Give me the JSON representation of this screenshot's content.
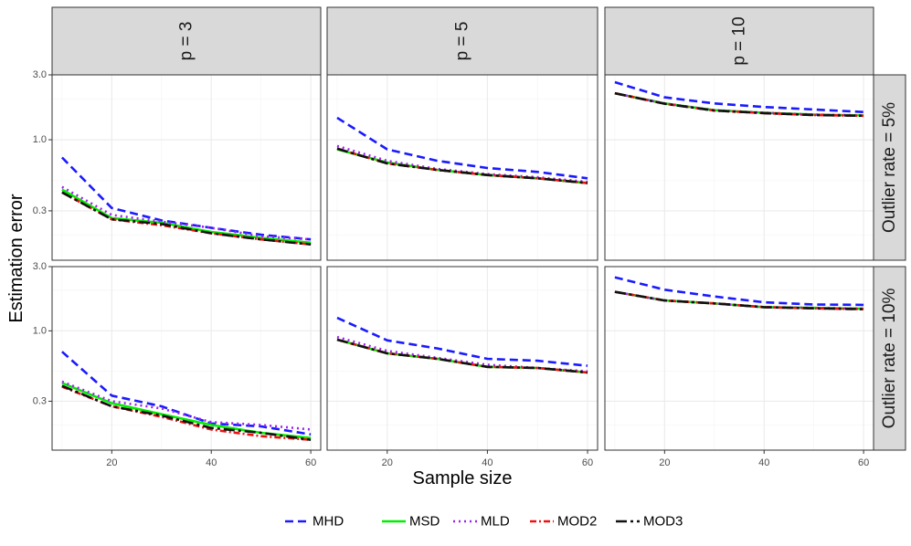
{
  "chart_data": {
    "type": "line",
    "xlabel": "Sample size",
    "ylabel": "Estimation error",
    "y_scale": "log",
    "xlim": [
      8,
      62
    ],
    "ylim": [
      0.13,
      3.0
    ],
    "x_ticks": [
      20,
      40,
      60
    ],
    "y_ticks": [
      0.3,
      1.0,
      3.0
    ],
    "y_tick_labels": [
      "0.3",
      "1.0",
      "3.0"
    ],
    "columns": [
      "p = 3",
      "p = 5",
      "p = 10"
    ],
    "rows": [
      "Outlier rate = 5%",
      "Outlier rate = 10%"
    ],
    "x": [
      10,
      20,
      30,
      40,
      50,
      60
    ],
    "series_styles": [
      {
        "name": "MHD",
        "color": "#1a1aff",
        "dash": "9,5"
      },
      {
        "name": "MSD",
        "color": "#00ee00",
        "dash": ""
      },
      {
        "name": "MLD",
        "color": "#a020f0",
        "dash": "2,4"
      },
      {
        "name": "MOD2",
        "color": "#ee1111",
        "dash": "7,3,2,3"
      },
      {
        "name": "MOD3",
        "color": "#111111",
        "dash": "12,4,3,4"
      }
    ],
    "panels": [
      {
        "row": 0,
        "col": 0,
        "series": {
          "MHD": [
            0.74,
            0.315,
            0.255,
            0.225,
            0.2,
            0.185
          ],
          "MSD": [
            0.43,
            0.265,
            0.245,
            0.21,
            0.19,
            0.175
          ],
          "MLD": [
            0.45,
            0.28,
            0.25,
            0.225,
            0.195,
            0.185
          ],
          "MOD2": [
            0.41,
            0.26,
            0.235,
            0.205,
            0.185,
            0.17
          ],
          "MOD3": [
            0.41,
            0.26,
            0.24,
            0.205,
            0.185,
            0.17
          ]
        }
      },
      {
        "row": 0,
        "col": 1,
        "series": {
          "MHD": [
            1.45,
            0.85,
            0.7,
            0.62,
            0.58,
            0.52
          ],
          "MSD": [
            0.85,
            0.68,
            0.6,
            0.55,
            0.52,
            0.48
          ],
          "MLD": [
            0.9,
            0.7,
            0.61,
            0.56,
            0.53,
            0.49
          ],
          "MOD2": [
            0.86,
            0.67,
            0.6,
            0.55,
            0.52,
            0.48
          ],
          "MOD3": [
            0.86,
            0.67,
            0.6,
            0.55,
            0.52,
            0.48
          ]
        }
      },
      {
        "row": 0,
        "col": 2,
        "series": {
          "MHD": [
            2.65,
            2.05,
            1.85,
            1.74,
            1.67,
            1.6
          ],
          "MSD": [
            2.2,
            1.85,
            1.65,
            1.58,
            1.53,
            1.51
          ],
          "MLD": [
            2.2,
            1.85,
            1.65,
            1.58,
            1.53,
            1.51
          ],
          "MOD2": [
            2.2,
            1.84,
            1.64,
            1.57,
            1.52,
            1.5
          ],
          "MOD3": [
            2.2,
            1.84,
            1.64,
            1.57,
            1.52,
            1.5
          ]
        }
      },
      {
        "row": 1,
        "col": 0,
        "series": {
          "MHD": [
            0.7,
            0.33,
            0.275,
            0.205,
            0.195,
            0.17
          ],
          "MSD": [
            0.41,
            0.29,
            0.24,
            0.2,
            0.175,
            0.16
          ],
          "MLD": [
            0.42,
            0.3,
            0.265,
            0.21,
            0.2,
            0.185
          ],
          "MOD2": [
            0.385,
            0.275,
            0.23,
            0.185,
            0.165,
            0.155
          ],
          "MOD3": [
            0.39,
            0.275,
            0.235,
            0.19,
            0.175,
            0.155
          ]
        }
      },
      {
        "row": 1,
        "col": 1,
        "series": {
          "MHD": [
            1.25,
            0.85,
            0.74,
            0.62,
            0.6,
            0.55
          ],
          "MSD": [
            0.86,
            0.68,
            0.62,
            0.54,
            0.53,
            0.49
          ],
          "MLD": [
            0.9,
            0.71,
            0.63,
            0.56,
            0.53,
            0.5
          ],
          "MOD2": [
            0.86,
            0.68,
            0.62,
            0.54,
            0.53,
            0.49
          ],
          "MOD3": [
            0.86,
            0.68,
            0.62,
            0.54,
            0.53,
            0.49
          ]
        }
      },
      {
        "row": 1,
        "col": 2,
        "series": {
          "MHD": [
            2.5,
            2.02,
            1.8,
            1.63,
            1.57,
            1.56
          ],
          "MSD": [
            1.95,
            1.68,
            1.6,
            1.5,
            1.48,
            1.46
          ],
          "MLD": [
            1.95,
            1.68,
            1.6,
            1.5,
            1.48,
            1.46
          ],
          "MOD2": [
            1.95,
            1.68,
            1.6,
            1.5,
            1.47,
            1.45
          ],
          "MOD3": [
            1.95,
            1.68,
            1.6,
            1.5,
            1.47,
            1.45
          ]
        }
      }
    ],
    "legend": [
      "MHD",
      "MSD",
      "MLD",
      "MOD2",
      "MOD3"
    ],
    "legend_position": "bottom"
  }
}
